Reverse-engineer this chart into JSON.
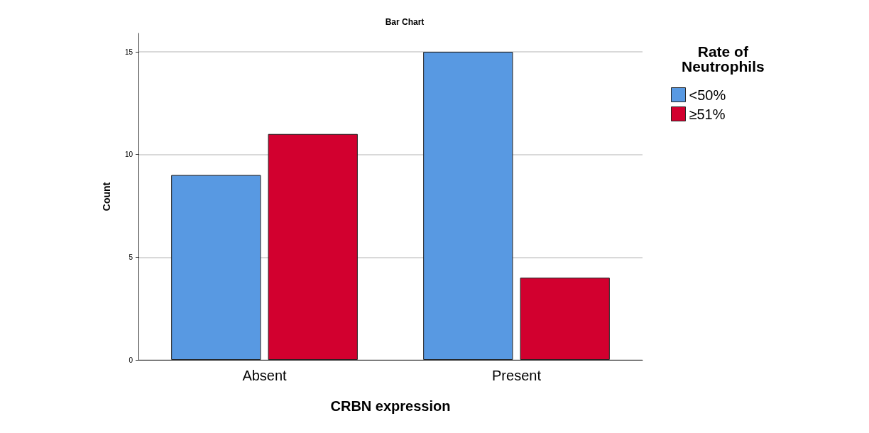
{
  "chart_data": {
    "type": "bar",
    "title": "Bar Chart",
    "xlabel": "CRBN expression",
    "ylabel": "Count",
    "legend_title": "Rate of\nNeutrophils",
    "categories": [
      "Absent",
      "Present"
    ],
    "series": [
      {
        "name": "<50%",
        "color": "#5899e2",
        "values": [
          9,
          15
        ]
      },
      {
        "name": "≥51%",
        "color": "#d2002f",
        "values": [
          11,
          4
        ]
      }
    ],
    "ylim": [
      0,
      15.9
    ],
    "yticks": [
      0,
      5,
      10,
      15
    ],
    "grid": "y",
    "legend": "top right"
  }
}
